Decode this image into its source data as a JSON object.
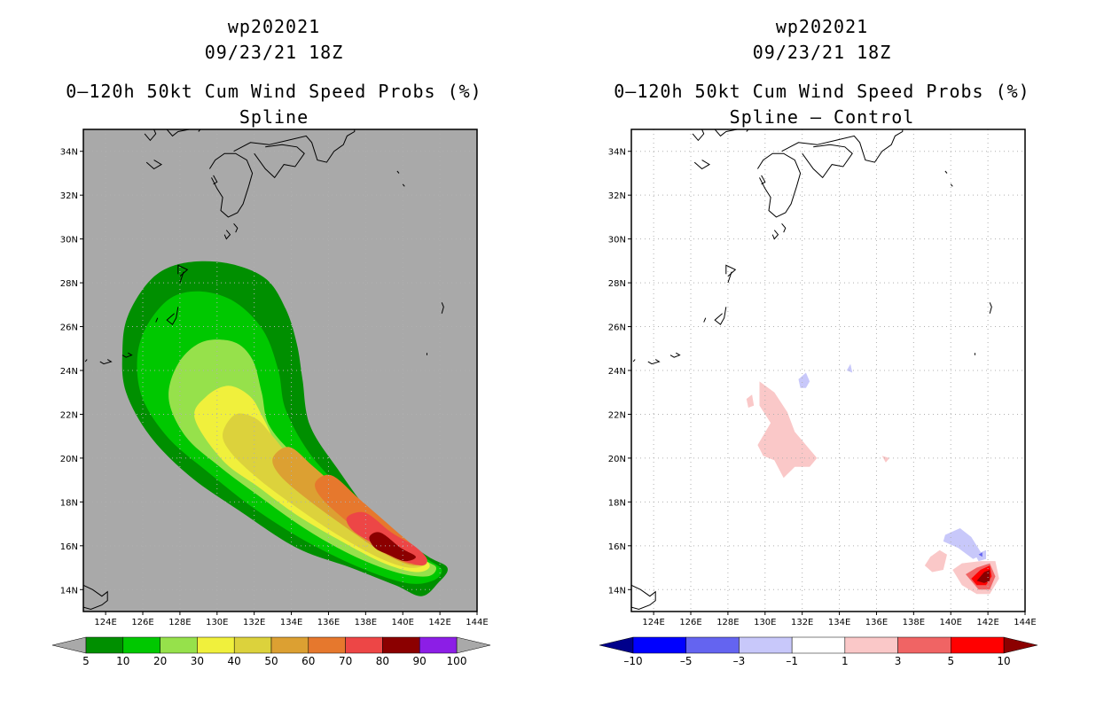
{
  "colors": {
    "background_left": "#a9a9a9",
    "background_right": "#ffffff",
    "coast": "#000000",
    "grid": "#b0b0b0",
    "prob_levels": [
      "#008f00",
      "#00c800",
      "#96e14b",
      "#f0f03c",
      "#dcd23c",
      "#dca032",
      "#e6782d",
      "#ed4646",
      "#8b0000",
      "#8c1ee6"
    ],
    "diff_levels": [
      "#00008b",
      "#0000ff",
      "#6464f0",
      "#c8c8fa",
      "#ffffff",
      "#fac8c8",
      "#f06464",
      "#ff0000",
      "#8b0000"
    ]
  },
  "left": {
    "storm": "wp202021",
    "datetime": "09/23/21 18Z",
    "product": "0–120h 50kt Cum Wind Speed Probs (%)",
    "subtitle": "Spline",
    "colorbar_labels": [
      "5",
      "10",
      "20",
      "30",
      "40",
      "50",
      "60",
      "70",
      "80",
      "90",
      "100"
    ]
  },
  "right": {
    "storm": "wp202021",
    "datetime": "09/23/21 18Z",
    "product": "0–120h 50kt Cum Wind Speed Probs (%)",
    "subtitle": "Spline – Control",
    "colorbar_labels": [
      "–10",
      "–5",
      "–3",
      "–1",
      "1",
      "3",
      "5",
      "10"
    ]
  },
  "axes": {
    "lon_labels": [
      "124E",
      "126E",
      "128E",
      "130E",
      "132E",
      "134E",
      "136E",
      "138E",
      "140E",
      "142E",
      "144E"
    ],
    "lat_labels": [
      "14N",
      "16N",
      "18N",
      "20N",
      "22N",
      "24N",
      "26N",
      "28N",
      "30N",
      "32N",
      "34N"
    ]
  },
  "chart_data": [
    {
      "type": "heatmap",
      "title": "0–120h 50kt Cum Wind Speed Probs (%) — Spline",
      "units": "%",
      "lon_range": [
        122.8,
        144
      ],
      "lat_range": [
        13,
        35
      ],
      "levels": [
        5,
        10,
        20,
        30,
        40,
        50,
        60,
        70,
        80,
        90,
        100
      ],
      "probability_swath_contours": [
        {
          "level": 5,
          "lonlat": [
            [
              124.9,
              24.8
            ],
            [
              125.2,
              26.5
            ],
            [
              126.5,
              28.2
            ],
            [
              128.2,
              28.9
            ],
            [
              130.5,
              28.9
            ],
            [
              132.6,
              28.2
            ],
            [
              133.7,
              26.8
            ],
            [
              134.3,
              25.2
            ],
            [
              134.6,
              23.6
            ],
            [
              135.0,
              21.5
            ],
            [
              136.5,
              19.5
            ],
            [
              138.5,
              17.3
            ],
            [
              141.2,
              15.6
            ],
            [
              142.4,
              15.0
            ],
            [
              141.9,
              14.3
            ],
            [
              141.0,
              13.7
            ],
            [
              139.6,
              14.2
            ],
            [
              137.2,
              15.0
            ],
            [
              134.3,
              15.9
            ],
            [
              131.2,
              17.6
            ],
            [
              128.5,
              19.2
            ],
            [
              126.4,
              21.0
            ],
            [
              125.1,
              23.0
            ]
          ]
        },
        {
          "level": 10,
          "lonlat": [
            [
              125.7,
              24.5
            ],
            [
              126.2,
              26.0
            ],
            [
              127.5,
              27.3
            ],
            [
              129.2,
              27.6
            ],
            [
              131.0,
              27.1
            ],
            [
              132.5,
              25.8
            ],
            [
              133.3,
              24.0
            ],
            [
              133.7,
              22.2
            ],
            [
              135.0,
              20.2
            ],
            [
              136.9,
              18.4
            ],
            [
              138.8,
              16.7
            ],
            [
              141.3,
              15.4
            ],
            [
              142.1,
              14.9
            ],
            [
              141.6,
              14.4
            ],
            [
              140.2,
              14.3
            ],
            [
              137.7,
              15.0
            ],
            [
              134.8,
              16.2
            ],
            [
              132.0,
              17.7
            ],
            [
              129.6,
              19.3
            ],
            [
              127.4,
              20.9
            ],
            [
              126.0,
              22.7
            ]
          ]
        },
        {
          "level": 20,
          "lonlat": [
            [
              127.4,
              22.7
            ],
            [
              127.9,
              24.3
            ],
            [
              129.2,
              25.3
            ],
            [
              130.9,
              25.3
            ],
            [
              131.9,
              24.5
            ],
            [
              132.4,
              23.0
            ],
            [
              132.8,
              21.5
            ],
            [
              134.2,
              20.1
            ],
            [
              136.2,
              18.6
            ],
            [
              138.6,
              16.8
            ],
            [
              141.1,
              15.4
            ],
            [
              141.8,
              15.0
            ],
            [
              141.3,
              14.6
            ],
            [
              139.6,
              14.8
            ],
            [
              137.2,
              15.6
            ],
            [
              134.7,
              16.8
            ],
            [
              132.2,
              18.3
            ],
            [
              130.0,
              19.7
            ],
            [
              128.3,
              21.0
            ]
          ]
        },
        {
          "level": 30,
          "lonlat": [
            [
              128.8,
              21.8
            ],
            [
              129.4,
              22.8
            ],
            [
              130.6,
              23.3
            ],
            [
              131.8,
              22.8
            ],
            [
              132.5,
              21.8
            ],
            [
              133.4,
              20.4
            ],
            [
              135.0,
              19.1
            ],
            [
              137.2,
              17.6
            ],
            [
              139.6,
              16.1
            ],
            [
              141.4,
              15.2
            ],
            [
              140.8,
              14.8
            ],
            [
              139.0,
              15.2
            ],
            [
              136.5,
              16.3
            ],
            [
              134.3,
              17.4
            ],
            [
              132.2,
              18.7
            ],
            [
              130.3,
              19.9
            ]
          ]
        },
        {
          "level": 40,
          "lonlat": [
            [
              130.3,
              21.1
            ],
            [
              131.0,
              22.0
            ],
            [
              132.1,
              21.8
            ],
            [
              133.0,
              21.0
            ],
            [
              134.1,
              19.9
            ],
            [
              135.8,
              18.7
            ],
            [
              138.3,
              17.1
            ],
            [
              140.6,
              15.7
            ],
            [
              141.3,
              15.2
            ],
            [
              140.3,
              15.0
            ],
            [
              138.6,
              15.5
            ],
            [
              136.3,
              16.6
            ],
            [
              134.2,
              17.8
            ],
            [
              132.3,
              19.0
            ],
            [
              130.8,
              20.2
            ]
          ]
        },
        {
          "level": 50,
          "lonlat": [
            [
              133.0,
              20.0
            ],
            [
              133.9,
              20.5
            ],
            [
              135.2,
              19.6
            ],
            [
              137.2,
              18.1
            ],
            [
              139.3,
              16.6
            ],
            [
              141.1,
              15.5
            ],
            [
              140.6,
              15.1
            ],
            [
              139.1,
              15.6
            ],
            [
              137.0,
              16.8
            ],
            [
              134.9,
              18.1
            ],
            [
              133.4,
              19.2
            ]
          ]
        },
        {
          "level": 60,
          "lonlat": [
            [
              135.3,
              18.9
            ],
            [
              136.2,
              19.2
            ],
            [
              137.7,
              18.1
            ],
            [
              139.6,
              16.7
            ],
            [
              141.0,
              15.6
            ],
            [
              140.3,
              15.2
            ],
            [
              138.8,
              15.9
            ],
            [
              137.0,
              17.1
            ],
            [
              135.6,
              18.2
            ]
          ]
        },
        {
          "level": 70,
          "lonlat": [
            [
              137.0,
              17.3
            ],
            [
              138.0,
              17.5
            ],
            [
              139.4,
              16.6
            ],
            [
              140.6,
              16.0
            ],
            [
              141.3,
              15.4
            ],
            [
              141.0,
              15.1
            ],
            [
              139.8,
              15.4
            ],
            [
              138.4,
              16.1
            ],
            [
              137.3,
              16.7
            ]
          ]
        },
        {
          "level": 80,
          "lonlat": [
            [
              138.2,
              16.4
            ],
            [
              138.8,
              16.6
            ],
            [
              139.9,
              15.9
            ],
            [
              140.7,
              15.5
            ],
            [
              140.1,
              15.3
            ],
            [
              139.2,
              15.6
            ],
            [
              138.5,
              15.9
            ]
          ]
        }
      ]
    },
    {
      "type": "heatmap",
      "title": "0–120h 50kt Cum Wind Speed Probs (%) — Spline – Control",
      "units": "%",
      "lon_range": [
        122.8,
        144
      ],
      "lat_range": [
        13,
        35
      ],
      "levels": [
        -10,
        -5,
        -3,
        -1,
        1,
        3,
        5,
        10
      ],
      "difference_contours": [
        {
          "range": [
            1,
            3
          ],
          "lonlat": [
            [
              129.7,
              23.5
            ],
            [
              130.5,
              23.0
            ],
            [
              131.2,
              22.1
            ],
            [
              131.6,
              21.2
            ],
            [
              132.1,
              20.7
            ],
            [
              132.8,
              20.0
            ],
            [
              132.4,
              19.6
            ],
            [
              131.6,
              19.6
            ],
            [
              131.0,
              19.1
            ],
            [
              130.5,
              19.9
            ],
            [
              129.9,
              20.1
            ],
            [
              129.6,
              20.6
            ],
            [
              130.3,
              21.6
            ],
            [
              129.7,
              22.4
            ]
          ]
        },
        {
          "range": [
            1,
            3
          ],
          "lonlat": [
            [
              129.0,
              22.7
            ],
            [
              129.3,
              22.9
            ],
            [
              129.4,
              22.4
            ],
            [
              129.1,
              22.3
            ]
          ]
        },
        {
          "range": [
            1,
            3
          ],
          "lonlat": [
            [
              136.3,
              20.1
            ],
            [
              136.7,
              20.0
            ],
            [
              136.5,
              19.8
            ]
          ]
        },
        {
          "range": [
            1,
            3
          ],
          "lonlat": [
            [
              138.9,
              15.5
            ],
            [
              139.4,
              15.8
            ],
            [
              139.8,
              15.6
            ],
            [
              139.6,
              14.9
            ],
            [
              139.0,
              14.8
            ],
            [
              138.6,
              15.1
            ]
          ]
        },
        {
          "range": [
            1,
            3
          ],
          "lonlat": [
            [
              140.1,
              14.9
            ],
            [
              140.6,
              15.2
            ],
            [
              141.6,
              15.3
            ],
            [
              142.4,
              15.3
            ],
            [
              142.6,
              14.5
            ],
            [
              142.1,
              13.8
            ],
            [
              141.4,
              13.8
            ],
            [
              140.6,
              14.2
            ]
          ]
        },
        {
          "range": [
            3,
            5
          ],
          "lonlat": [
            [
              140.8,
              14.7
            ],
            [
              141.4,
              15.0
            ],
            [
              142.1,
              15.2
            ],
            [
              142.4,
              14.6
            ],
            [
              142.1,
              14.0
            ],
            [
              141.5,
              14.0
            ]
          ]
        },
        {
          "range": [
            5,
            10
          ],
          "lonlat": [
            [
              141.1,
              14.5
            ],
            [
              141.6,
              14.9
            ],
            [
              142.1,
              15.1
            ],
            [
              142.2,
              14.6
            ],
            [
              141.9,
              14.2
            ],
            [
              141.4,
              14.2
            ]
          ]
        },
        {
          "range": [
            10,
            99
          ],
          "lonlat": [
            [
              141.4,
              14.4
            ],
            [
              141.8,
              14.8
            ],
            [
              142.1,
              14.9
            ],
            [
              142.1,
              14.4
            ],
            [
              141.8,
              14.3
            ]
          ]
        },
        {
          "range": [
            -3,
            -1
          ],
          "lonlat": [
            [
              139.7,
              16.5
            ],
            [
              140.5,
              16.8
            ],
            [
              141.1,
              16.4
            ],
            [
              141.7,
              15.6
            ],
            [
              141.2,
              15.4
            ],
            [
              140.4,
              15.9
            ],
            [
              139.6,
              16.2
            ]
          ]
        },
        {
          "range": [
            -3,
            -1
          ],
          "lonlat": [
            [
              131.8,
              23.6
            ],
            [
              132.2,
              23.9
            ],
            [
              132.4,
              23.5
            ],
            [
              132.2,
              23.2
            ],
            [
              131.9,
              23.2
            ]
          ]
        },
        {
          "range": [
            -3,
            -1
          ],
          "lonlat": [
            [
              134.4,
              24.0
            ],
            [
              134.6,
              24.3
            ],
            [
              134.7,
              23.9
            ]
          ]
        },
        {
          "range": [
            -3,
            -1
          ],
          "lonlat": [
            [
              141.3,
              15.6
            ],
            [
              141.9,
              15.8
            ],
            [
              141.9,
              15.4
            ],
            [
              141.5,
              15.3
            ]
          ]
        },
        {
          "range": [
            -5,
            -3
          ],
          "lonlat": [
            [
              141.5,
              15.6
            ],
            [
              141.7,
              15.7
            ],
            [
              141.7,
              15.5
            ]
          ]
        }
      ]
    }
  ]
}
